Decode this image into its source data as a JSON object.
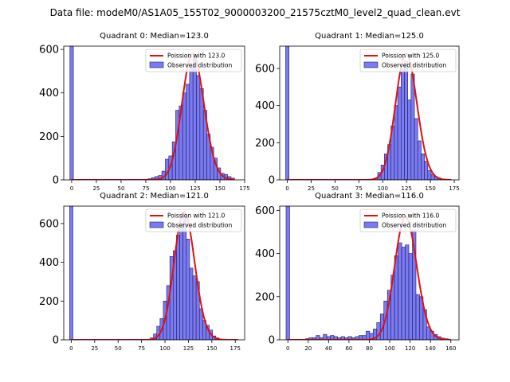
{
  "figure": {
    "suptitle": "Data file: modeM0/AS1A05_155T02_9000003200_21575cztM0_level2_quad_clean.evt"
  },
  "colors": {
    "bar_fill": "#7b7bf0",
    "bar_edge": "#1a1a6e",
    "poisson_line": "#e01010"
  },
  "chart_data": [
    {
      "type": "bar",
      "title": "Quadrant 0: Median=123.0",
      "xlim": [
        -8,
        175
      ],
      "ylim": [
        0,
        615
      ],
      "xticks": [
        0,
        25,
        50,
        75,
        100,
        125,
        150,
        175
      ],
      "yticks": [
        0,
        200,
        400,
        600
      ],
      "bin_width": 3.5,
      "bins": [
        {
          "x": 0,
          "count": 615
        },
        {
          "x": 79,
          "count": 5
        },
        {
          "x": 82.5,
          "count": 10
        },
        {
          "x": 86,
          "count": 15
        },
        {
          "x": 89.5,
          "count": 20
        },
        {
          "x": 93,
          "count": 40
        },
        {
          "x": 96.5,
          "count": 95
        },
        {
          "x": 100,
          "count": 110
        },
        {
          "x": 103.5,
          "count": 175
        },
        {
          "x": 107,
          "count": 320
        },
        {
          "x": 110.5,
          "count": 340
        },
        {
          "x": 114,
          "count": 400
        },
        {
          "x": 117.5,
          "count": 440
        },
        {
          "x": 121,
          "count": 520
        },
        {
          "x": 124.5,
          "count": 570
        },
        {
          "x": 128,
          "count": 480
        },
        {
          "x": 131.5,
          "count": 420
        },
        {
          "x": 135,
          "count": 320
        },
        {
          "x": 138.5,
          "count": 210
        },
        {
          "x": 142,
          "count": 150
        },
        {
          "x": 145.5,
          "count": 100
        },
        {
          "x": 149,
          "count": 55
        },
        {
          "x": 152.5,
          "count": 30
        },
        {
          "x": 156,
          "count": 25
        },
        {
          "x": 159.5,
          "count": 15
        },
        {
          "x": 163,
          "count": 8
        }
      ],
      "poisson": {
        "mean": 123.0,
        "peak": 580,
        "x_start": 0,
        "x_end": 165
      },
      "legend": [
        "Poission with 123.0",
        "Observed distribution"
      ],
      "legend_position": "top-right"
    },
    {
      "type": "bar",
      "title": "Quadrant 1: Median=125.0",
      "xlim": [
        -8,
        180
      ],
      "ylim": [
        0,
        720
      ],
      "xticks": [
        0,
        25,
        50,
        75,
        100,
        125,
        150,
        175
      ],
      "yticks": [
        0,
        200,
        400,
        600
      ],
      "bin_width": 3.5,
      "bins": [
        {
          "x": 0,
          "count": 720
        },
        {
          "x": 93,
          "count": 10
        },
        {
          "x": 96.5,
          "count": 40
        },
        {
          "x": 100,
          "count": 80
        },
        {
          "x": 103.5,
          "count": 140
        },
        {
          "x": 107,
          "count": 190
        },
        {
          "x": 110.5,
          "count": 290
        },
        {
          "x": 114,
          "count": 400
        },
        {
          "x": 117.5,
          "count": 500
        },
        {
          "x": 121,
          "count": 600
        },
        {
          "x": 124.5,
          "count": 640
        },
        {
          "x": 128,
          "count": 430
        },
        {
          "x": 131.5,
          "count": 570
        },
        {
          "x": 135,
          "count": 330
        },
        {
          "x": 138.5,
          "count": 210
        },
        {
          "x": 142,
          "count": 140
        },
        {
          "x": 145.5,
          "count": 100
        },
        {
          "x": 149,
          "count": 50
        },
        {
          "x": 152.5,
          "count": 30
        },
        {
          "x": 156,
          "count": 15
        },
        {
          "x": 159.5,
          "count": 10
        },
        {
          "x": 163,
          "count": 5
        }
      ],
      "poisson": {
        "mean": 125.0,
        "peak": 680,
        "x_start": 0,
        "x_end": 172
      },
      "legend": [
        "Poission with 125.0",
        "Observed distribution"
      ],
      "legend_position": "top-right"
    },
    {
      "type": "bar",
      "title": "Quadrant 2: Median=121.0",
      "xlim": [
        -8,
        185
      ],
      "ylim": [
        0,
        690
      ],
      "xticks": [
        0,
        25,
        50,
        75,
        100,
        125,
        150,
        175
      ],
      "yticks": [
        0,
        200,
        400,
        600
      ],
      "bin_width": 3.5,
      "bins": [
        {
          "x": 0,
          "count": 690
        },
        {
          "x": 86,
          "count": 10
        },
        {
          "x": 89.5,
          "count": 30
        },
        {
          "x": 93,
          "count": 70
        },
        {
          "x": 96.5,
          "count": 110
        },
        {
          "x": 100,
          "count": 200
        },
        {
          "x": 103.5,
          "count": 280
        },
        {
          "x": 107,
          "count": 430
        },
        {
          "x": 110.5,
          "count": 460
        },
        {
          "x": 114,
          "count": 540
        },
        {
          "x": 117.5,
          "count": 600
        },
        {
          "x": 121,
          "count": 650
        },
        {
          "x": 124.5,
          "count": 520
        },
        {
          "x": 128,
          "count": 370
        },
        {
          "x": 131.5,
          "count": 330
        },
        {
          "x": 135,
          "count": 300
        },
        {
          "x": 138.5,
          "count": 160
        },
        {
          "x": 142,
          "count": 100
        },
        {
          "x": 145.5,
          "count": 75
        },
        {
          "x": 149,
          "count": 50
        },
        {
          "x": 152.5,
          "count": 20
        },
        {
          "x": 156,
          "count": 10
        }
      ],
      "poisson": {
        "mean": 121.0,
        "peak": 660,
        "x_start": 0,
        "x_end": 178
      },
      "legend": [
        "Poission with 121.0",
        "Observed distribution"
      ],
      "legend_position": "top-right"
    },
    {
      "type": "bar",
      "title": "Quadrant 3: Median=116.0",
      "xlim": [
        -8,
        168
      ],
      "ylim": [
        0,
        620
      ],
      "xticks": [
        0,
        20,
        40,
        60,
        80,
        100,
        120,
        140,
        160
      ],
      "yticks": [
        0,
        200,
        400,
        600
      ],
      "bin_width": 3.5,
      "bins": [
        {
          "x": 0,
          "count": 620
        },
        {
          "x": 19,
          "count": 5
        },
        {
          "x": 22.5,
          "count": 10
        },
        {
          "x": 26,
          "count": 10
        },
        {
          "x": 29.5,
          "count": 20
        },
        {
          "x": 33,
          "count": 10
        },
        {
          "x": 36.5,
          "count": 25
        },
        {
          "x": 40,
          "count": 15
        },
        {
          "x": 43.5,
          "count": 20
        },
        {
          "x": 47,
          "count": 15
        },
        {
          "x": 50.5,
          "count": 10
        },
        {
          "x": 54,
          "count": 15
        },
        {
          "x": 57.5,
          "count": 10
        },
        {
          "x": 61,
          "count": 15
        },
        {
          "x": 64.5,
          "count": 10
        },
        {
          "x": 68,
          "count": 15
        },
        {
          "x": 71.5,
          "count": 20
        },
        {
          "x": 75,
          "count": 20
        },
        {
          "x": 78.5,
          "count": 40
        },
        {
          "x": 82,
          "count": 30
        },
        {
          "x": 85.5,
          "count": 50
        },
        {
          "x": 89,
          "count": 80
        },
        {
          "x": 92.5,
          "count": 120
        },
        {
          "x": 96,
          "count": 180
        },
        {
          "x": 99.5,
          "count": 230
        },
        {
          "x": 103,
          "count": 300
        },
        {
          "x": 106.5,
          "count": 390
        },
        {
          "x": 110,
          "count": 450
        },
        {
          "x": 113.5,
          "count": 430
        },
        {
          "x": 117,
          "count": 440
        },
        {
          "x": 120.5,
          "count": 400
        },
        {
          "x": 124,
          "count": 510
        },
        {
          "x": 127.5,
          "count": 210
        },
        {
          "x": 131,
          "count": 200
        },
        {
          "x": 134.5,
          "count": 140
        },
        {
          "x": 138,
          "count": 60
        },
        {
          "x": 141.5,
          "count": 40
        },
        {
          "x": 145,
          "count": 25
        },
        {
          "x": 148.5,
          "count": 15
        },
        {
          "x": 152,
          "count": 8
        },
        {
          "x": 155.5,
          "count": 5
        }
      ],
      "poisson": {
        "mean": 116.0,
        "peak": 570,
        "x_start": 0,
        "x_end": 160
      },
      "legend": [
        "Poission with 116.0",
        "Observed distribution"
      ],
      "legend_position": "top-right"
    }
  ]
}
